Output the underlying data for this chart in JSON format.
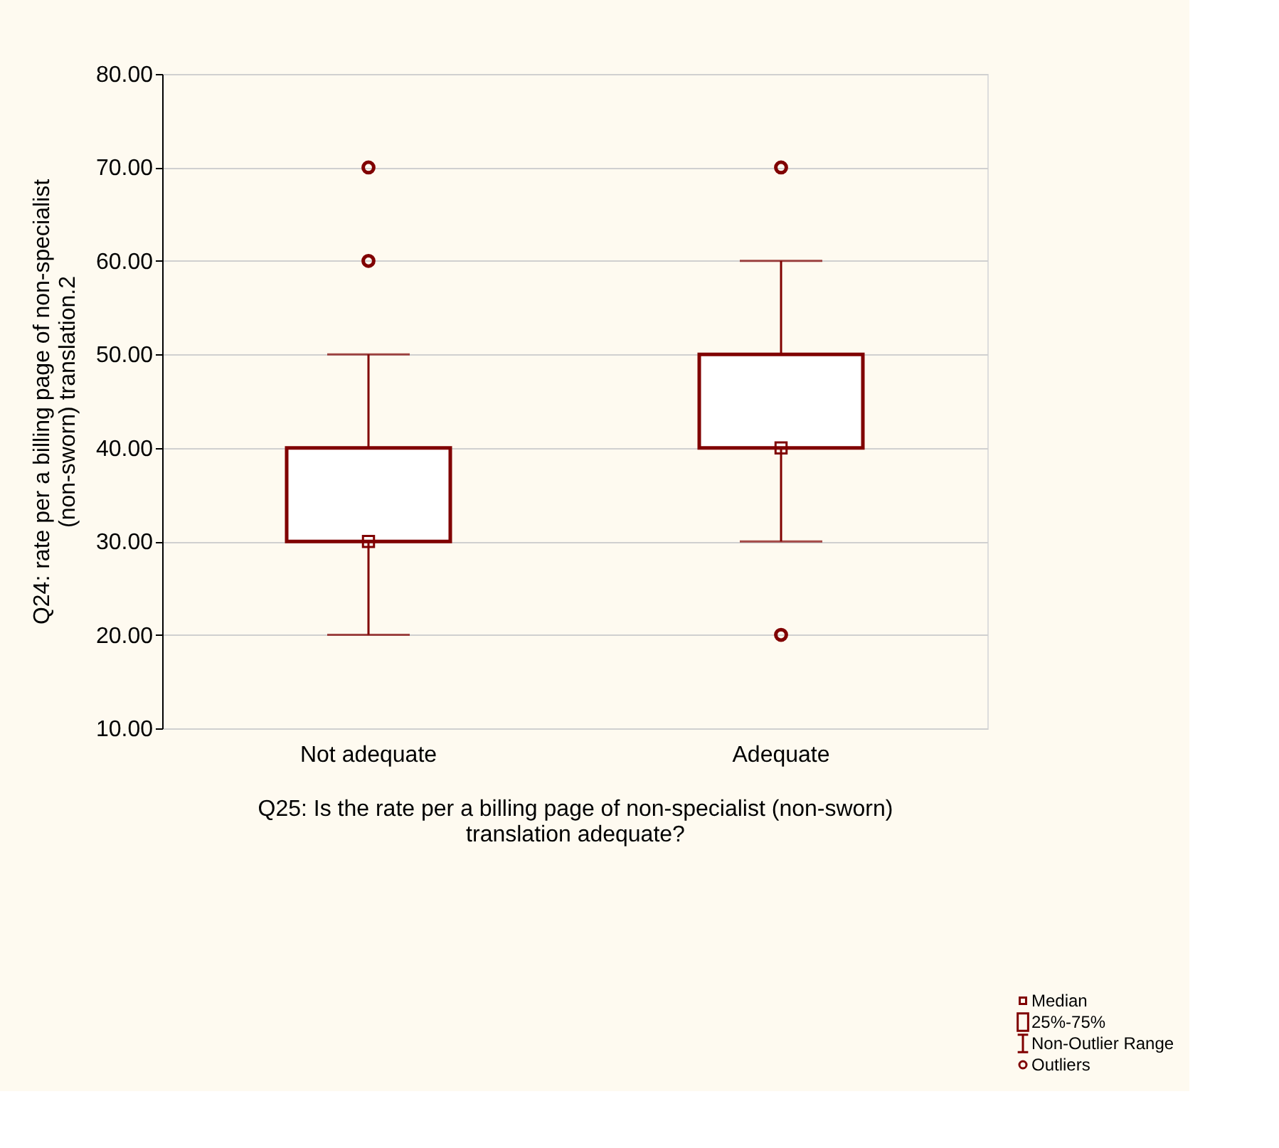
{
  "chart_data": {
    "type": "box",
    "ylabel": "Q24: rate per a billing page of non-specialist\n(non-sworn) translation.2",
    "xlabel": "Q25: Is the rate per a billing page of non-specialist (non-sworn)\ntranslation adequate?",
    "categories": [
      "Not adequate",
      "Adequate"
    ],
    "series": [
      {
        "color": "#800000",
        "boxes": [
          {
            "low": 20,
            "q1": 30,
            "median": 30,
            "q3": 40,
            "high": 50,
            "outliers": [
              60,
              70
            ]
          },
          {
            "low": 30,
            "q1": 40,
            "median": 40,
            "q3": 50,
            "high": 60,
            "outliers": [
              20,
              70
            ]
          }
        ]
      }
    ],
    "ylim": [
      10,
      80
    ],
    "yticks": [
      {
        "value": 10,
        "label": "10.00"
      },
      {
        "value": 20,
        "label": "20.00"
      },
      {
        "value": 30,
        "label": "30.00"
      },
      {
        "value": 40,
        "label": "40.00"
      },
      {
        "value": 50,
        "label": "50.00"
      },
      {
        "value": 60,
        "label": "60.00"
      },
      {
        "value": 70,
        "label": "70.00"
      },
      {
        "value": 80,
        "label": "80.00"
      }
    ],
    "grid": "y",
    "annotations": [
      "Median",
      "25%-75%",
      "Non-Outlier Range",
      "Outliers"
    ]
  }
}
